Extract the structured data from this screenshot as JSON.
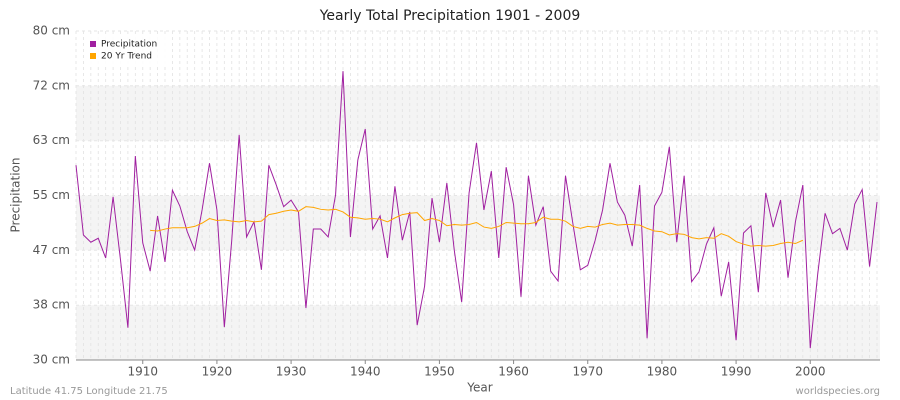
{
  "chart_data": {
    "type": "line",
    "title": "Yearly Total Precipitation 1901 - 2009",
    "xlabel": "Year",
    "ylabel": "Precipitation",
    "footer_left": "Latitude 41.75 Longitude 21.75",
    "footer_right": "worldspecies.org",
    "x": [
      1901,
      1902,
      1903,
      1904,
      1905,
      1906,
      1907,
      1908,
      1909,
      1910,
      1911,
      1912,
      1913,
      1914,
      1915,
      1916,
      1917,
      1918,
      1919,
      1920,
      1921,
      1922,
      1923,
      1924,
      1925,
      1926,
      1927,
      1928,
      1929,
      1930,
      1931,
      1932,
      1933,
      1934,
      1935,
      1936,
      1937,
      1938,
      1939,
      1940,
      1941,
      1942,
      1943,
      1944,
      1945,
      1946,
      1947,
      1948,
      1949,
      1950,
      1951,
      1952,
      1953,
      1954,
      1955,
      1956,
      1957,
      1958,
      1959,
      1960,
      1961,
      1962,
      1963,
      1964,
      1965,
      1966,
      1967,
      1968,
      1969,
      1970,
      1971,
      1972,
      1973,
      1974,
      1975,
      1976,
      1977,
      1978,
      1979,
      1980,
      1981,
      1982,
      1983,
      1984,
      1985,
      1986,
      1987,
      1988,
      1989,
      1990,
      1991,
      1992,
      1993,
      1994,
      1995,
      1996,
      1997,
      1998,
      1999,
      2000,
      2001,
      2002,
      2003,
      2004,
      2005,
      2006,
      2007,
      2008,
      2009
    ],
    "series": [
      {
        "name": "Precipitation",
        "color": "#a020a0",
        "values": [
          59.6,
          49,
          47.9,
          48.5,
          45.5,
          54.8,
          45.2,
          34.9,
          61,
          47.8,
          43.5,
          51.9,
          44.9,
          55.8,
          53.4,
          49.5,
          46.7,
          52.8,
          59.9,
          52.8,
          35,
          48.2,
          64.2,
          48.7,
          51,
          43.7,
          59.6,
          56.6,
          53.3,
          54.3,
          52.5,
          37.9,
          49.9,
          49.9,
          48.7,
          55.1,
          73.9,
          48.7,
          60.4,
          65.1,
          49.9,
          51.9,
          45.5,
          56.4,
          48.2,
          52.5,
          35.3,
          41.2,
          54.6,
          47.9,
          56.9,
          46.7,
          38.8,
          55.4,
          63,
          52.8,
          58.7,
          45.5,
          59.3,
          53.6,
          39.6,
          58,
          50.5,
          53.3,
          43.5,
          42,
          58,
          50.7,
          43.7,
          44.4,
          48.2,
          52.8,
          59.9,
          54,
          52,
          47.3,
          56.6,
          33.3,
          53.4,
          55.5,
          62.4,
          47.9,
          58,
          41.9,
          43.4,
          47.6,
          50.1,
          39.7,
          44.9,
          33,
          49.3,
          50.4,
          40.3,
          55.4,
          50.2,
          54.3,
          42.5,
          51,
          56.6,
          31.8,
          43,
          52.3,
          49.2,
          50,
          46.7,
          53.7,
          55.9,
          44.2,
          54
        ]
      },
      {
        "name": "20 Yr Trend",
        "color": "#ffa500",
        "values": [
          null,
          null,
          null,
          null,
          null,
          null,
          null,
          null,
          null,
          null,
          49.7,
          49.6,
          49.9,
          50.1,
          50.1,
          50.1,
          50.3,
          50.8,
          51.5,
          51.2,
          51.3,
          51.1,
          51.0,
          51.2,
          51.0,
          51.1,
          52.1,
          52.3,
          52.6,
          52.8,
          52.6,
          53.3,
          53.2,
          52.9,
          52.8,
          52.9,
          52.5,
          51.7,
          51.6,
          51.4,
          51.5,
          51.4,
          51.0,
          51.6,
          52.1,
          52.3,
          52.4,
          51.2,
          51.5,
          51.2,
          50.4,
          50.6,
          50.5,
          50.6,
          50.9,
          50.2,
          50.0,
          50.3,
          50.9,
          50.8,
          50.7,
          50.7,
          50.9,
          51.7,
          51.4,
          51.4,
          51.1,
          50.3,
          50.0,
          50.3,
          50.2,
          50.6,
          50.8,
          50.5,
          50.6,
          50.6,
          50.5,
          50.0,
          49.6,
          49.5,
          49.0,
          49.2,
          49.1,
          48.6,
          48.4,
          48.6,
          48.5,
          49.2,
          48.8,
          48.0,
          47.6,
          47.3,
          47.4,
          47.3,
          47.4,
          47.7,
          47.9,
          47.7,
          48.2,
          null,
          null,
          null,
          null,
          null,
          null,
          null,
          null,
          null,
          null
        ]
      }
    ],
    "xlim": [
      1901,
      2009
    ],
    "xticks": [
      1910,
      1920,
      1930,
      1940,
      1950,
      1960,
      1970,
      1980,
      1990,
      2000
    ],
    "ylim": [
      30,
      80
    ],
    "yticks": [
      {
        "value": 30,
        "label": "30 cm"
      },
      {
        "value": 38.33,
        "label": "38 cm"
      },
      {
        "value": 46.67,
        "label": "47 cm"
      },
      {
        "value": 55,
        "label": "55 cm"
      },
      {
        "value": 63.33,
        "label": "63 cm"
      },
      {
        "value": 71.67,
        "label": "72 cm"
      },
      {
        "value": 80,
        "label": "80 cm"
      }
    ],
    "grid": true,
    "legend": "upper left"
  }
}
